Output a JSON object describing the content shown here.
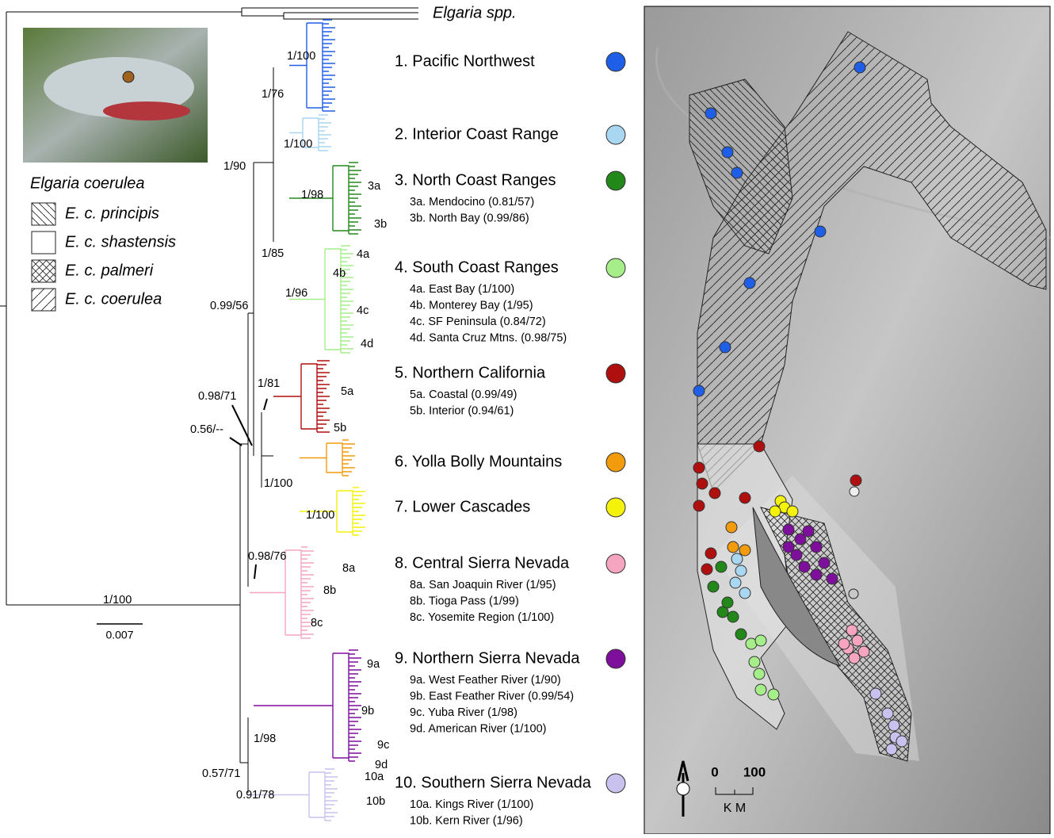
{
  "outgroup": "Elgaria spp.",
  "legend": {
    "title": "Elgaria coerulea",
    "items": [
      "E. c. principis",
      "E. c. shastensis",
      "E. c. palmeri",
      "E. c. coerulea"
    ]
  },
  "clades": [
    {
      "label": "1. Pacific Northwest",
      "color": "#1f5fe8",
      "subclades": []
    },
    {
      "label": "2. Interior Coast Range",
      "color": "#a9d6f0",
      "subclades": []
    },
    {
      "label": "3. North Coast Ranges",
      "color": "#22881a",
      "subclades": [
        "3a. Mendocino (0.81/57)",
        "3b. North Bay (0.99/86)"
      ]
    },
    {
      "label": "4. South Coast Ranges",
      "color": "#a6ee8a",
      "subclades": [
        "4a. East Bay (1/100)",
        "4b. Monterey Bay (1/95)",
        "4c. SF Peninsula (0.84/72)",
        "4d. Santa Cruz Mtns. (0.98/75)"
      ]
    },
    {
      "label": "5. Northern California",
      "color": "#b00f0f",
      "subclades": [
        "5a. Coastal (0.99/49)",
        "5b. Interior (0.94/61)"
      ]
    },
    {
      "label": "6. Yolla Bolly Mountains",
      "color": "#f29b0c",
      "subclades": []
    },
    {
      "label": "7. Lower Cascades",
      "color": "#f4f20a",
      "subclades": []
    },
    {
      "label": "8. Central Sierra Nevada",
      "color": "#f6a5c0",
      "subclades": [
        "8a. San Joaquin River (1/95)",
        "8b. Tioga Pass (1/99)",
        "8c. Yosemite Region (1/100)"
      ]
    },
    {
      "label": "9. Northern Sierra Nevada",
      "color": "#7e0f9c",
      "subclades": [
        "9a. West Feather River (1/90)",
        "9b. East Feather River (0.99/54)",
        "9c. Yuba River (1/98)",
        "9d. American River (1/100)"
      ]
    },
    {
      "label": "10. Southern Sierra Nevada",
      "color": "#c9c1ee",
      "subclades": [
        "10a. Kings River (1/100)",
        "10b. Kern River (1/96)"
      ]
    }
  ],
  "tips": [
    "3a",
    "3b",
    "4a",
    "4b",
    "4c",
    "4d",
    "5a",
    "5b",
    "8a",
    "8b",
    "8c",
    "9a",
    "9b",
    "9c",
    "9d",
    "10a",
    "10b"
  ],
  "supports": [
    "1/100",
    "1/76",
    "1/100",
    "1/90",
    "1/98",
    "1/85",
    "1/96",
    "0.99/56",
    "1/81",
    "0.98/71",
    "0.56/--",
    "1/100",
    "1/100",
    "0.98/76",
    "1/98",
    "0.57/71",
    "0.91/78",
    "1/100"
  ],
  "scale_bar": "0.007",
  "map_scale": {
    "zero": "0",
    "hundred": "100",
    "unit": "K M"
  }
}
